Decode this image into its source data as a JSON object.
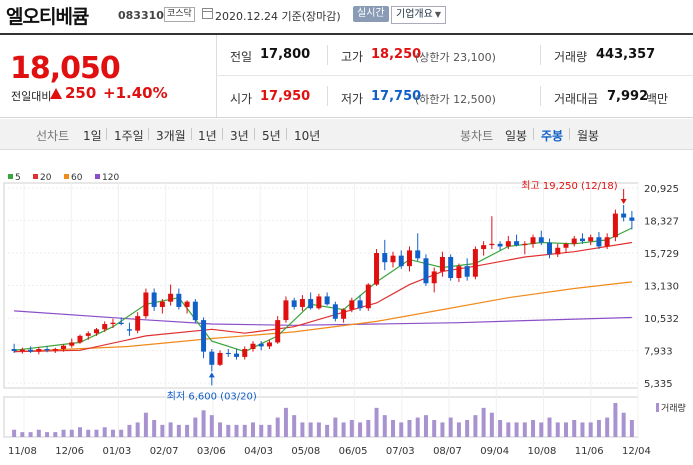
{
  "header": {
    "stock_name": "엘오티베큠",
    "stock_code": "083310",
    "market": "코스닥",
    "date_text": "2020.12.24 기준(장마감)",
    "realtime_label": "실시간",
    "company_label": "기업개요",
    "company_arrow": "▼"
  },
  "quote": {
    "price": "18,050",
    "change_label": "전일대비",
    "change_value": "250",
    "change_pct": "+1.40%",
    "prev_close_label": "전일",
    "prev_close": "17,800",
    "high_label": "고가",
    "high": "18,250",
    "upper_limit": "(상한가 23,100)",
    "volume_label": "거래량",
    "volume": "443,357",
    "open_label": "시가",
    "open": "17,950",
    "low_label": "저가",
    "low": "17,750",
    "lower_limit": "(하한가 12,500)",
    "amount_label": "거래대금",
    "amount": "7,992",
    "amount_unit": "백만"
  },
  "periods": {
    "line_label": "선차트",
    "line_items": [
      "1일",
      "1주일",
      "3개월",
      "1년",
      "3년",
      "5년",
      "10년"
    ],
    "candle_label": "봉차트",
    "candle_items": [
      "일봉",
      "주봉",
      "월봉"
    ],
    "selected_candle": "주봉"
  },
  "colors": {
    "up": "#e01010",
    "down": "#1060c8",
    "ma5": "#3aa63a",
    "ma20": "#e03030",
    "ma60": "#f08a1a",
    "ma120": "#8a4fc8",
    "volume": "#a992d0"
  },
  "chart_data": {
    "type": "candlestick",
    "legend": [
      {
        "name": "5",
        "color": "#3aa63a"
      },
      {
        "name": "20",
        "color": "#e03030"
      },
      {
        "name": "60",
        "color": "#f08a1a"
      },
      {
        "name": "120",
        "color": "#8a4fc8"
      }
    ],
    "y_ticks": [
      "20,925",
      "18,327",
      "15,729",
      "13,130",
      "10,532",
      "7,933",
      "5,335"
    ],
    "ylim": [
      5335,
      20925
    ],
    "x_ticks": [
      "11/08",
      "12/06",
      "01/03",
      "02/07",
      "03/06",
      "04/03",
      "05/08",
      "06/05",
      "07/03",
      "08/07",
      "09/04",
      "10/08",
      "11/06",
      "12/04"
    ],
    "annotation_high": "최고 19,250 (12/18)",
    "annotation_low": "최저 6,600 (03/20)",
    "volume_label": "거래량",
    "candles": [
      [
        8300,
        8700,
        8000,
        8150
      ],
      [
        8150,
        8400,
        7950,
        8250
      ],
      [
        8250,
        8500,
        8000,
        8100
      ],
      [
        8100,
        8450,
        7900,
        8300
      ],
      [
        8300,
        8500,
        8050,
        8200
      ],
      [
        8200,
        8400,
        8000,
        8300
      ],
      [
        8300,
        8650,
        8100,
        8550
      ],
      [
        8550,
        9100,
        8400,
        8800
      ],
      [
        8800,
        9400,
        8700,
        9300
      ],
      [
        9300,
        9650,
        9000,
        9500
      ],
      [
        9500,
        9900,
        9300,
        9800
      ],
      [
        9800,
        10400,
        9600,
        10200
      ],
      [
        10200,
        10600,
        9900,
        10300
      ],
      [
        10300,
        10700,
        10100,
        10200
      ],
      [
        9800,
        10300,
        9300,
        9700
      ],
      [
        9700,
        11100,
        9500,
        10800
      ],
      [
        10800,
        12900,
        10600,
        12600
      ],
      [
        12600,
        12900,
        11200,
        11500
      ],
      [
        11500,
        12100,
        11000,
        11900
      ],
      [
        11900,
        13200,
        11600,
        12500
      ],
      [
        12500,
        12900,
        11300,
        11500
      ],
      [
        11500,
        12000,
        11000,
        11900
      ],
      [
        11900,
        12100,
        10300,
        10500
      ],
      [
        10500,
        10700,
        7600,
        8100
      ],
      [
        8100,
        8300,
        6600,
        7100
      ],
      [
        7100,
        8200,
        7000,
        8000
      ],
      [
        8000,
        8300,
        7700,
        7950
      ],
      [
        7950,
        8300,
        7500,
        7700
      ],
      [
        7700,
        8500,
        7500,
        8300
      ],
      [
        8300,
        8900,
        8100,
        8700
      ],
      [
        8700,
        8900,
        8200,
        8500
      ],
      [
        8500,
        9000,
        8300,
        8800
      ],
      [
        8800,
        10800,
        8700,
        10500
      ],
      [
        10500,
        12300,
        10300,
        12000
      ],
      [
        12000,
        12200,
        11300,
        11500
      ],
      [
        11500,
        12400,
        11200,
        12100
      ],
      [
        12100,
        12600,
        11300,
        11400
      ],
      [
        11400,
        12500,
        11300,
        12300
      ],
      [
        12300,
        12600,
        11600,
        11700
      ],
      [
        11700,
        11900,
        10400,
        10600
      ],
      [
        10600,
        11400,
        10300,
        11300
      ],
      [
        11300,
        12200,
        11100,
        12000
      ],
      [
        12000,
        12400,
        11200,
        11400
      ],
      [
        11400,
        13300,
        11200,
        13200
      ],
      [
        13200,
        15900,
        13100,
        15600
      ],
      [
        15600,
        16600,
        14300,
        14900
      ],
      [
        14900,
        15700,
        14500,
        15400
      ],
      [
        15400,
        15800,
        14400,
        14600
      ],
      [
        14600,
        16100,
        14200,
        15800
      ],
      [
        15800,
        17100,
        15000,
        15200
      ],
      [
        15200,
        15500,
        13100,
        13300
      ],
      [
        13300,
        14500,
        12600,
        14200
      ],
      [
        14200,
        15700,
        13800,
        15300
      ],
      [
        15300,
        15500,
        13500,
        13700
      ],
      [
        13700,
        14800,
        13400,
        14600
      ],
      [
        14600,
        15200,
        13500,
        13800
      ],
      [
        13800,
        16100,
        13600,
        15900
      ],
      [
        15900,
        16500,
        15400,
        16200
      ],
      [
        16200,
        18400,
        15900,
        16300
      ],
      [
        16300,
        16500,
        15800,
        16100
      ],
      [
        16100,
        16900,
        15900,
        16500
      ],
      [
        16500,
        17000,
        16100,
        16200
      ],
      [
        16200,
        16500,
        15500,
        16300
      ],
      [
        16300,
        17000,
        16000,
        16800
      ],
      [
        16800,
        17300,
        16200,
        16400
      ],
      [
        16400,
        16700,
        15200,
        15500
      ],
      [
        15500,
        16300,
        15300,
        16000
      ],
      [
        16000,
        16400,
        15600,
        16300
      ],
      [
        16300,
        16900,
        16100,
        16700
      ],
      [
        16700,
        17100,
        16300,
        16500
      ],
      [
        16500,
        17000,
        16200,
        16800
      ],
      [
        16800,
        17200,
        15900,
        16100
      ],
      [
        16100,
        17100,
        15900,
        16800
      ],
      [
        16800,
        18900,
        16500,
        18600
      ],
      [
        18600,
        19250,
        18000,
        18300
      ],
      [
        18300,
        18800,
        17400,
        18050
      ]
    ],
    "ma5": [
      [
        0,
        8200
      ],
      [
        8,
        8800
      ],
      [
        12,
        10000
      ],
      [
        16,
        11700
      ],
      [
        20,
        12200
      ],
      [
        24,
        8900
      ],
      [
        28,
        8100
      ],
      [
        32,
        9300
      ],
      [
        36,
        11700
      ],
      [
        40,
        11300
      ],
      [
        44,
        13400
      ],
      [
        48,
        15100
      ],
      [
        52,
        14500
      ],
      [
        56,
        14800
      ],
      [
        60,
        16100
      ],
      [
        64,
        16400
      ],
      [
        68,
        16300
      ],
      [
        72,
        16600
      ],
      [
        75,
        17500
      ]
    ],
    "ma20": [
      [
        0,
        8100
      ],
      [
        8,
        8200
      ],
      [
        16,
        9300
      ],
      [
        24,
        9800
      ],
      [
        28,
        9500
      ],
      [
        34,
        10000
      ],
      [
        40,
        11100
      ],
      [
        44,
        11800
      ],
      [
        48,
        13200
      ],
      [
        52,
        14200
      ],
      [
        56,
        14600
      ],
      [
        62,
        15300
      ],
      [
        68,
        15700
      ],
      [
        75,
        16400
      ]
    ],
    "ma60": [
      [
        0,
        8100
      ],
      [
        14,
        8500
      ],
      [
        24,
        9100
      ],
      [
        34,
        9600
      ],
      [
        44,
        10400
      ],
      [
        52,
        11300
      ],
      [
        60,
        12200
      ],
      [
        68,
        12900
      ],
      [
        75,
        13400
      ]
    ],
    "ma120": [
      [
        0,
        11200
      ],
      [
        14,
        10600
      ],
      [
        24,
        10200
      ],
      [
        34,
        10100
      ],
      [
        44,
        10200
      ],
      [
        54,
        10300
      ],
      [
        64,
        10500
      ],
      [
        75,
        10700
      ]
    ],
    "volume": [
      3,
      2,
      2,
      3,
      2,
      2,
      3,
      3,
      4,
      3,
      3,
      4,
      3,
      3,
      5,
      6,
      10,
      7,
      5,
      6,
      5,
      5,
      8,
      11,
      9,
      6,
      5,
      5,
      5,
      6,
      5,
      5,
      8,
      12,
      9,
      6,
      6,
      6,
      5,
      8,
      6,
      7,
      6,
      7,
      12,
      9,
      7,
      6,
      7,
      8,
      9,
      7,
      6,
      8,
      6,
      7,
      9,
      12,
      10,
      7,
      6,
      6,
      6,
      7,
      6,
      8,
      6,
      6,
      7,
      6,
      6,
      7,
      8,
      14,
      10,
      7
    ]
  }
}
